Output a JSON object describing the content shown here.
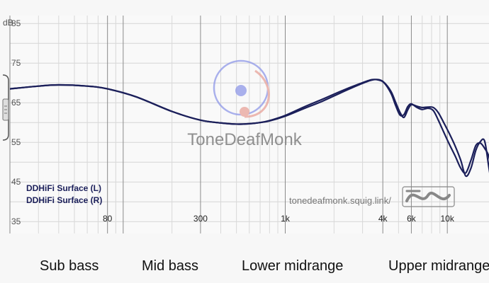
{
  "chart_data": {
    "type": "line",
    "title": "",
    "xlabel": "",
    "ylabel": "",
    "y_unit": "dB",
    "x_scale": "log",
    "xlim": [
      20,
      20000
    ],
    "ylim": [
      32,
      87
    ],
    "y_ticks": [
      85,
      75,
      65,
      55,
      45,
      35
    ],
    "x_ticks": [
      {
        "value": 80,
        "label": "80"
      },
      {
        "value": 300,
        "label": "300"
      },
      {
        "value": 1000,
        "label": "1k"
      },
      {
        "value": 4000,
        "label": "4k"
      },
      {
        "value": 6000,
        "label": "6k"
      },
      {
        "value": 10000,
        "label": "10k"
      }
    ],
    "grid": true,
    "legend_position": "bottom-left",
    "series": [
      {
        "name": "DDHiFi Surface (L)",
        "color": "#1b1f5a",
        "x": [
          20,
          30,
          40,
          60,
          80,
          120,
          200,
          300,
          400,
          500,
          600,
          700,
          800,
          1000,
          1300,
          1700,
          2200,
          2800,
          3400,
          3800,
          4100,
          4500,
          4800,
          5100,
          5400,
          5700,
          6000,
          6500,
          7000,
          7600,
          8200,
          8800,
          9500,
          10300,
          11200,
          12100,
          13000,
          14000,
          15000,
          16000,
          17000,
          18000,
          19000,
          20000
        ],
        "values": [
          68.5,
          69.2,
          69.5,
          69.2,
          68.5,
          66.5,
          62.8,
          60.6,
          59.9,
          59.6,
          59.7,
          60.0,
          60.5,
          61.8,
          63.9,
          65.9,
          67.9,
          69.6,
          70.8,
          70.7,
          69.9,
          67.3,
          64.3,
          61.9,
          62.0,
          64.0,
          64.7,
          63.8,
          63.3,
          63.6,
          63.0,
          60.6,
          57.6,
          54.5,
          51.5,
          48.5,
          47.3,
          50.5,
          54.2,
          54.8,
          53.5,
          51.6,
          47.5,
          42.0
        ]
      },
      {
        "name": "DDHiFi Surface (R)",
        "color": "#1b1f5a",
        "x": [
          20,
          30,
          40,
          60,
          80,
          120,
          200,
          300,
          400,
          500,
          600,
          700,
          800,
          1000,
          1300,
          1700,
          2200,
          2800,
          3400,
          3800,
          4100,
          4500,
          4800,
          5100,
          5400,
          5700,
          6000,
          6500,
          7000,
          7600,
          8200,
          8800,
          9500,
          10300,
          11200,
          12100,
          13000,
          14000,
          15000,
          16000,
          17000,
          18000,
          19000,
          20000
        ],
        "values": [
          68.5,
          69.2,
          69.5,
          69.2,
          68.5,
          66.5,
          62.8,
          60.6,
          59.9,
          59.6,
          59.7,
          60.0,
          60.4,
          61.6,
          63.5,
          65.4,
          67.5,
          69.4,
          70.7,
          70.8,
          70.0,
          67.8,
          65.1,
          62.6,
          61.3,
          63.2,
          64.5,
          64.1,
          63.8,
          63.9,
          63.8,
          62.5,
          60.0,
          57.2,
          54.0,
          50.5,
          46.5,
          48.5,
          53.0,
          55.2,
          55.3,
          49.0,
          43.0,
          38.5
        ]
      }
    ],
    "annotations": {
      "watermark": "ToneDeafMonk",
      "url": "tonedeafmonk.squig.link/"
    }
  },
  "frequency_bands": [
    "Sub bass",
    "Mid bass",
    "Lower midrange",
    "Upper midrange"
  ],
  "colors": {
    "background": "#f7f7f7",
    "curve": "#1b1f5a",
    "logo_blue": "#8f98e8",
    "logo_red": "#e8a39a"
  },
  "icons": [
    "volume-slider-icon",
    "monk-logo-icon",
    "squiggle-logo-icon"
  ]
}
